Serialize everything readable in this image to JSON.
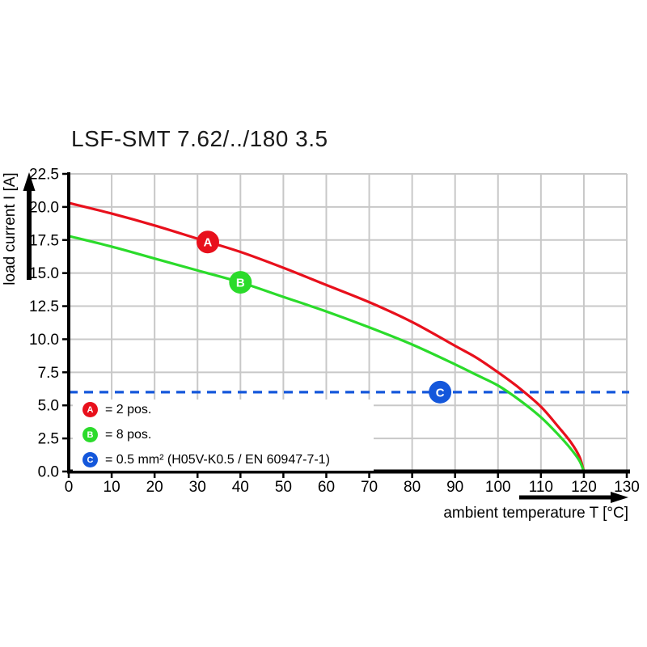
{
  "title": "LSF-SMT 7.62/../180 3.5",
  "colors": {
    "red": "#e8101c",
    "green": "#2bdb2b",
    "blue": "#1457db",
    "grid": "#c8c8c8",
    "axis": "#000000",
    "text": "#1a1a1a",
    "background": "#ffffff"
  },
  "chart_data": {
    "type": "line",
    "title": "LSF-SMT 7.62/../180 3.5",
    "xlabel": "ambient temperature T [°C]",
    "ylabel": "load current I [A]",
    "xlim": [
      0,
      130
    ],
    "ylim": [
      0,
      22.5
    ],
    "grid": true,
    "x_ticks": [
      0,
      10,
      20,
      30,
      40,
      50,
      60,
      70,
      80,
      90,
      100,
      110,
      120,
      130
    ],
    "x_tick_labels": [
      "0",
      "10",
      "20",
      "30",
      "40",
      "50",
      "60",
      "70",
      "80",
      "90",
      "100",
      "110",
      "120",
      "130"
    ],
    "y_ticks": [
      0,
      2.5,
      5.0,
      7.5,
      10.0,
      12.5,
      15.0,
      17.5,
      20.0,
      22.5
    ],
    "y_tick_labels": [
      "0.0",
      "2.5",
      "5.0",
      "7.5",
      "10.0",
      "12.5",
      "15.0",
      "17.5",
      "20.0",
      "22.5"
    ],
    "series": [
      {
        "name": "A",
        "label": "2 pos.",
        "color": "#e8101c",
        "x": [
          0,
          10,
          20,
          30,
          40,
          50,
          60,
          70,
          80,
          90,
          95,
          100,
          105,
          110,
          114,
          117,
          119,
          120
        ],
        "y": [
          20.3,
          19.5,
          18.6,
          17.6,
          16.6,
          15.4,
          14.1,
          12.8,
          11.3,
          9.5,
          8.6,
          7.5,
          6.3,
          4.9,
          3.4,
          2.2,
          1.1,
          0
        ],
        "marker": {
          "letter": "A",
          "T": 32.4,
          "I": 17.35
        }
      },
      {
        "name": "B",
        "label": "8 pos.",
        "color": "#2bdb2b",
        "x": [
          0,
          10,
          20,
          30,
          40,
          50,
          60,
          70,
          80,
          90,
          95,
          100,
          105,
          110,
          114,
          117,
          119,
          120
        ],
        "y": [
          17.8,
          17.0,
          16.1,
          15.2,
          14.3,
          13.2,
          12.1,
          10.9,
          9.6,
          8.1,
          7.3,
          6.5,
          5.4,
          4.1,
          2.8,
          1.7,
          0.8,
          0
        ],
        "marker": {
          "letter": "B",
          "T": 40,
          "I": 14.3
        }
      }
    ],
    "threshold": {
      "name": "C",
      "label": "0.5 mm² (H05V-K0.5 / EN 60947-7-1)",
      "value": 6.0,
      "color": "#1457db",
      "style": "dashed",
      "marker": {
        "letter": "C",
        "T": 86.5,
        "I": 6.0
      }
    }
  },
  "legend": {
    "items": [
      {
        "letter": "A",
        "color": "#e8101c",
        "text": "= 2 pos."
      },
      {
        "letter": "B",
        "color": "#2bdb2b",
        "text": "= 8 pos."
      },
      {
        "letter": "C",
        "color": "#1457db",
        "text": "= 0.5 mm² (H05V-K0.5 / EN 60947-7-1)"
      }
    ]
  }
}
